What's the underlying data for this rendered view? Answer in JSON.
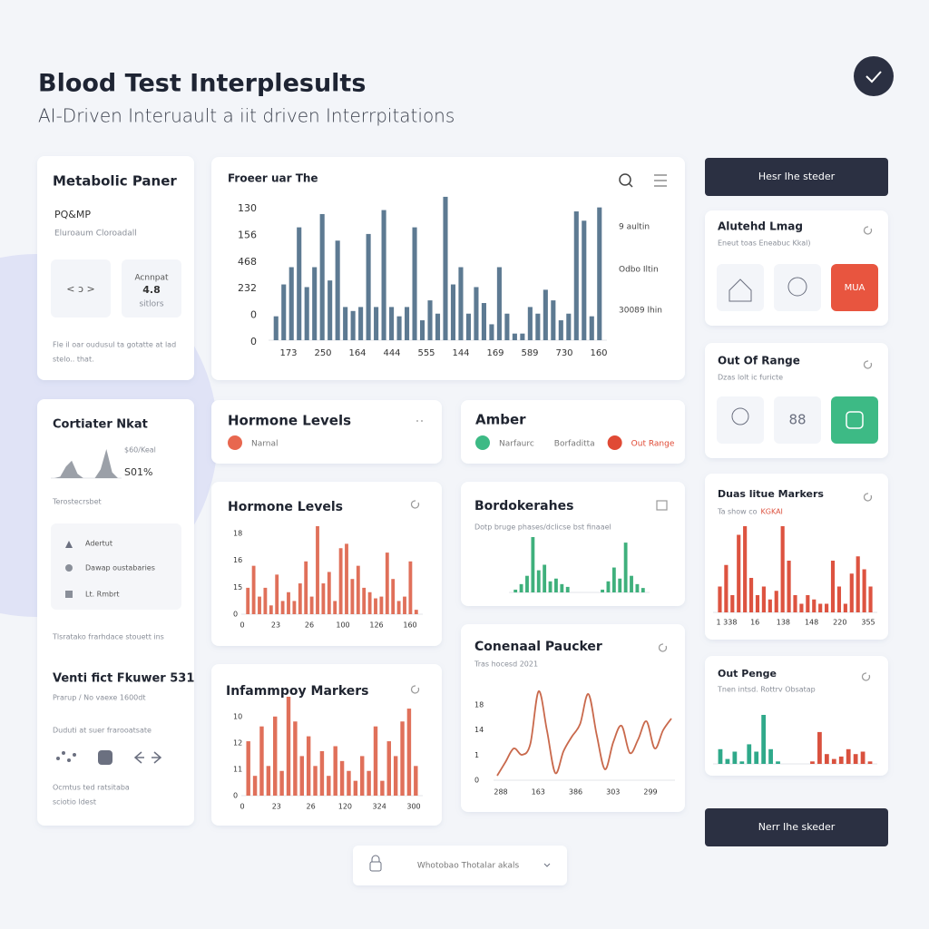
{
  "header": {
    "title": "Blood Test Interplesults",
    "subtitle": "AI-Driven Interuault a iit driven Interrpitations"
  },
  "metabolic": {
    "title": "Metabolic Paner",
    "code": "PQ&MP",
    "caption": "Eluroaum Cloroadall",
    "tile_1": "< ɔ >",
    "tile_2": [
      "Acnnpat",
      "4.8",
      "sitlors"
    ],
    "footer": [
      "Fle il oar oudusul ta gotatte at lad",
      "stelo.. that."
    ]
  },
  "cortiater": {
    "title": "Cortiater Nkat",
    "stat_1": "$60/Keal",
    "stat_2": "S01%",
    "caption": "Terostecrsbet",
    "items": [
      "Adertut",
      "Dawap oustabaries",
      "Lt. Rmbrt"
    ],
    "note": "Tlsratako frarhdace stouett ins",
    "heading": "Venti fict Fkuwer 531",
    "subheading": "Prarup / No vaexe 1600dt",
    "caption_2": "Duduti at suer frarooatsate",
    "footer": [
      "Ocmtus ted ratsitaba",
      "sciotio ldest"
    ]
  },
  "legend_cards": [
    {
      "title": "Hormone Levels",
      "items": [
        {
          "label": "Narnal",
          "color": "#e8674f"
        }
      ]
    },
    {
      "title": "Amber",
      "items": [
        {
          "label": "Narfaurc",
          "color": "#3dba85"
        },
        {
          "label": "Borfaditta"
        },
        {
          "label": "Out Range",
          "color": "#e04a35",
          "label_color": "#e04a35"
        }
      ]
    }
  ],
  "right_panel": {
    "button_top": "Hesr Ihe steder",
    "button_bottom": "Nerr Ihe skeder",
    "cards": [
      {
        "title": "Alutehd Lmag",
        "subtitle": "Eneut toas Eneabuc Kkal)",
        "tile_label": "MUA"
      },
      {
        "title": "Out Of Range",
        "subtitle": "Dzas lolt ic furicte",
        "tile_label": "88"
      }
    ]
  },
  "footer_pill": "Whotobao Thotalar akals",
  "chart_data": [
    {
      "type": "bar",
      "title": "Froeer uar The",
      "y_labels": [
        "130",
        "156",
        "468",
        "232",
        "0",
        "0"
      ],
      "x_labels": [
        "173",
        "250",
        "164",
        "444",
        "555",
        "144",
        "169",
        "589",
        "730",
        "160"
      ],
      "side_labels": [
        "9 aultin",
        "Odbo Iltin",
        "30089 lhin"
      ],
      "color": "#5d7a92",
      "ylim": [
        0,
        110
      ],
      "values": [
        18,
        42,
        55,
        85,
        40,
        55,
        95,
        45,
        75,
        25,
        22,
        25,
        80,
        25,
        98,
        25,
        18,
        25,
        85,
        15,
        30,
        20,
        108,
        42,
        55,
        20,
        40,
        28,
        12,
        55,
        20,
        5,
        5,
        25,
        20,
        38,
        30,
        15,
        20,
        97,
        90,
        18,
        100
      ]
    },
    {
      "type": "bar",
      "title": "Hormone Levels",
      "y_labels": [
        "18",
        "16",
        "15",
        "0"
      ],
      "x_labels": [
        "0",
        "23",
        "26",
        "100",
        "126",
        "160"
      ],
      "color": "#e0705a",
      "ylim": [
        0,
        100
      ],
      "values": [
        30,
        55,
        20,
        30,
        10,
        45,
        15,
        25,
        15,
        35,
        60,
        20,
        100,
        35,
        48,
        15,
        75,
        80,
        40,
        55,
        30,
        25,
        18,
        20,
        70,
        40,
        15,
        20,
        60,
        5
      ]
    },
    {
      "type": "bar",
      "title": "Bordokerahes",
      "subtitle": "Dotp bruge phases/dclicse bst finaael",
      "color": "#3fb07c",
      "ylim": [
        0,
        100
      ],
      "values": [
        5,
        15,
        30,
        100,
        40,
        50,
        20,
        25,
        15,
        10,
        0,
        0,
        0,
        0,
        0,
        5,
        20,
        45,
        25,
        90,
        30,
        15,
        8
      ]
    },
    {
      "type": "line",
      "title": "Conenaal Paucker",
      "subtitle": "Tras hocesd 2021",
      "y_labels": [
        "18",
        "14",
        "1",
        "0"
      ],
      "x_labels": [
        "288",
        "163",
        "386",
        "303",
        "299"
      ],
      "color": "#c9694c",
      "ylim": [
        0,
        100
      ],
      "values": [
        5,
        20,
        35,
        28,
        40,
        98,
        55,
        8,
        32,
        48,
        62,
        95,
        50,
        12,
        42,
        60,
        30,
        45,
        65,
        35,
        55,
        68
      ]
    },
    {
      "type": "bar",
      "title": "Infammpoy Markers",
      "y_labels": [
        "10",
        "12",
        "11",
        "0"
      ],
      "x_labels": [
        "0",
        "23",
        "26",
        "120",
        "324",
        "300"
      ],
      "color": "#e0705a",
      "ylim": [
        0,
        100
      ],
      "values": [
        55,
        20,
        70,
        30,
        80,
        25,
        100,
        75,
        40,
        60,
        30,
        45,
        20,
        50,
        35,
        25,
        15,
        40,
        25,
        70,
        15,
        55,
        40,
        75,
        88,
        30
      ]
    },
    {
      "type": "bar",
      "title": "Duas litue Markers",
      "subtitle": "Ta show co",
      "subtitle_highlight": "KGKAI",
      "x_labels": [
        "1 338",
        "16",
        "138",
        "148",
        "220",
        "355"
      ],
      "color": "#dd5340",
      "ylim": [
        0,
        100
      ],
      "values": [
        30,
        55,
        20,
        90,
        100,
        40,
        20,
        30,
        15,
        25,
        100,
        60,
        20,
        10,
        20,
        15,
        10,
        10,
        60,
        30,
        10,
        45,
        65,
        50,
        30
      ]
    },
    {
      "type": "bar",
      "title": "Out Penge",
      "subtitle": "Tnen intsd. Rottrv Obsatap",
      "ylim": [
        0,
        100
      ],
      "series": [
        {
          "color": "#2fa98a",
          "values": [
            30,
            10,
            25,
            5,
            40,
            25,
            100,
            30,
            5
          ]
        },
        {
          "color": "#d9513e",
          "values": [
            5,
            65,
            20,
            10,
            15,
            30,
            20,
            25,
            5
          ]
        }
      ]
    },
    {
      "type": "area",
      "color": "#8a8f99",
      "ylim": [
        0,
        100
      ],
      "values": [
        0,
        5,
        40,
        60,
        15,
        0,
        0,
        0,
        30,
        100,
        20,
        0
      ]
    }
  ]
}
